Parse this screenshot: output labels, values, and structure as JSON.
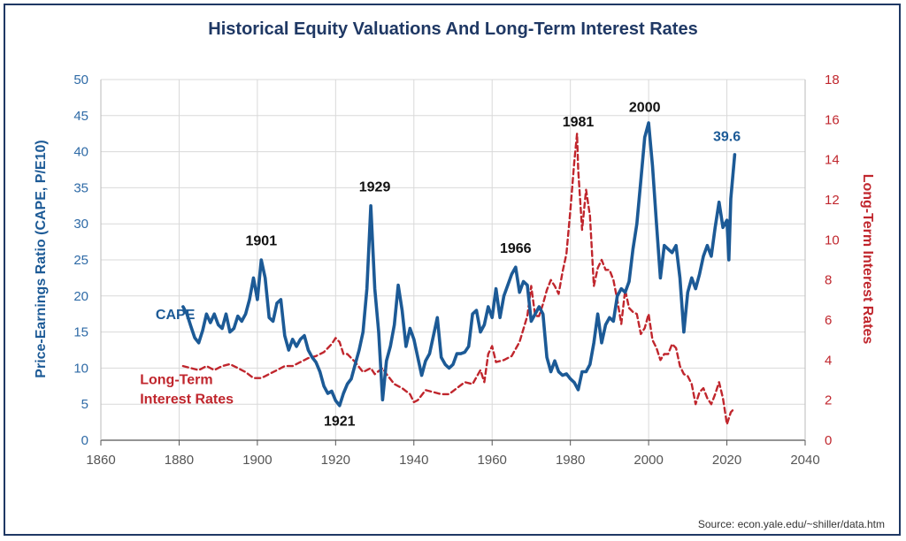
{
  "chart_data": {
    "type": "line",
    "title": "Historical Equity Valuations And Long-Term Interest Rates",
    "source": "Source: econ.yale.edu/~shiller/data.htm",
    "xlim": [
      1860,
      2040
    ],
    "x_ticks": [
      1860,
      1880,
      1900,
      1920,
      1940,
      1960,
      1980,
      2000,
      2020,
      2040
    ],
    "y_left": {
      "label": "Price-Earnings Ratio (CAPE, P/E10)",
      "range": [
        0,
        50
      ],
      "ticks": [
        0,
        5,
        10,
        15,
        20,
        25,
        30,
        35,
        40,
        45,
        50
      ]
    },
    "y_right": {
      "label": "Long-Term Interest Rates",
      "range": [
        0,
        18
      ],
      "ticks": [
        0,
        2,
        4,
        6,
        8,
        10,
        12,
        14,
        16,
        18
      ]
    },
    "grid": true,
    "colors": {
      "cape": "#1c5a96",
      "rates": "#c0262d",
      "title": "#1f3864"
    },
    "series": [
      {
        "name": "CAPE",
        "axis": "left",
        "style": "solid",
        "points": [
          [
            1881,
            18.5
          ],
          [
            1882,
            17.5
          ],
          [
            1883,
            15.8
          ],
          [
            1884,
            14.2
          ],
          [
            1885,
            13.5
          ],
          [
            1886,
            15.2
          ],
          [
            1887,
            17.5
          ],
          [
            1888,
            16.3
          ],
          [
            1889,
            17.5
          ],
          [
            1890,
            16.0
          ],
          [
            1891,
            15.5
          ],
          [
            1892,
            17.5
          ],
          [
            1893,
            15.0
          ],
          [
            1894,
            15.5
          ],
          [
            1895,
            17.2
          ],
          [
            1896,
            16.5
          ],
          [
            1897,
            17.5
          ],
          [
            1898,
            19.5
          ],
          [
            1899,
            22.5
          ],
          [
            1900,
            19.5
          ],
          [
            1901,
            25.0
          ],
          [
            1902,
            22.5
          ],
          [
            1903,
            17.0
          ],
          [
            1904,
            16.5
          ],
          [
            1905,
            19.0
          ],
          [
            1906,
            19.5
          ],
          [
            1907,
            14.5
          ],
          [
            1908,
            12.5
          ],
          [
            1909,
            14.0
          ],
          [
            1910,
            13.0
          ],
          [
            1911,
            14.0
          ],
          [
            1912,
            14.5
          ],
          [
            1913,
            12.5
          ],
          [
            1914,
            11.5
          ],
          [
            1915,
            10.8
          ],
          [
            1916,
            9.5
          ],
          [
            1917,
            7.5
          ],
          [
            1918,
            6.5
          ],
          [
            1919,
            6.8
          ],
          [
            1920,
            5.5
          ],
          [
            1921,
            4.8
          ],
          [
            1922,
            6.5
          ],
          [
            1923,
            7.8
          ],
          [
            1924,
            8.5
          ],
          [
            1925,
            10.5
          ],
          [
            1926,
            12.5
          ],
          [
            1927,
            15.0
          ],
          [
            1928,
            21.0
          ],
          [
            1929,
            32.5
          ],
          [
            1930,
            21.0
          ],
          [
            1931,
            15.0
          ],
          [
            1932,
            5.6
          ],
          [
            1933,
            11.0
          ],
          [
            1934,
            13.0
          ],
          [
            1935,
            16.0
          ],
          [
            1936,
            21.5
          ],
          [
            1937,
            18.0
          ],
          [
            1938,
            13.0
          ],
          [
            1939,
            15.5
          ],
          [
            1940,
            14.0
          ],
          [
            1941,
            11.5
          ],
          [
            1942,
            9.0
          ],
          [
            1943,
            11.0
          ],
          [
            1944,
            12.0
          ],
          [
            1945,
            14.5
          ],
          [
            1946,
            17.0
          ],
          [
            1947,
            11.5
          ],
          [
            1948,
            10.5
          ],
          [
            1949,
            10.0
          ],
          [
            1950,
            10.5
          ],
          [
            1951,
            12.0
          ],
          [
            1952,
            12.0
          ],
          [
            1953,
            12.2
          ],
          [
            1954,
            13.0
          ],
          [
            1955,
            17.5
          ],
          [
            1956,
            18.0
          ],
          [
            1957,
            15.0
          ],
          [
            1958,
            16.0
          ],
          [
            1959,
            18.5
          ],
          [
            1960,
            17.0
          ],
          [
            1961,
            21.0
          ],
          [
            1962,
            17.0
          ],
          [
            1963,
            20.0
          ],
          [
            1964,
            21.5
          ],
          [
            1965,
            23.0
          ],
          [
            1966,
            24.0
          ],
          [
            1967,
            20.5
          ],
          [
            1968,
            22.0
          ],
          [
            1969,
            21.5
          ],
          [
            1970,
            16.5
          ],
          [
            1971,
            17.5
          ],
          [
            1972,
            18.5
          ],
          [
            1973,
            17.5
          ],
          [
            1974,
            11.5
          ],
          [
            1975,
            9.5
          ],
          [
            1976,
            11.0
          ],
          [
            1977,
            9.5
          ],
          [
            1978,
            9.0
          ],
          [
            1979,
            9.2
          ],
          [
            1980,
            8.5
          ],
          [
            1981,
            8.0
          ],
          [
            1982,
            7.0
          ],
          [
            1983,
            9.5
          ],
          [
            1984,
            9.5
          ],
          [
            1985,
            10.5
          ],
          [
            1986,
            13.5
          ],
          [
            1987,
            17.5
          ],
          [
            1988,
            13.5
          ],
          [
            1989,
            16.0
          ],
          [
            1990,
            17.0
          ],
          [
            1991,
            16.5
          ],
          [
            1992,
            20.0
          ],
          [
            1993,
            21.0
          ],
          [
            1994,
            20.5
          ],
          [
            1995,
            22.0
          ],
          [
            1996,
            26.5
          ],
          [
            1997,
            30.0
          ],
          [
            1998,
            36.0
          ],
          [
            1999,
            42.0
          ],
          [
            2000,
            44.0
          ],
          [
            2001,
            38.0
          ],
          [
            2002,
            30.0
          ],
          [
            2003,
            22.5
          ],
          [
            2004,
            27.0
          ],
          [
            2005,
            26.5
          ],
          [
            2006,
            26.0
          ],
          [
            2007,
            27.0
          ],
          [
            2008,
            22.5
          ],
          [
            2009,
            15.0
          ],
          [
            2010,
            20.5
          ],
          [
            2011,
            22.5
          ],
          [
            2012,
            21.0
          ],
          [
            2013,
            23.0
          ],
          [
            2014,
            25.5
          ],
          [
            2015,
            27.0
          ],
          [
            2016,
            25.5
          ],
          [
            2017,
            29.5
          ],
          [
            2018,
            33.0
          ],
          [
            2019,
            29.5
          ],
          [
            2020,
            30.5
          ],
          [
            2020.5,
            25.0
          ],
          [
            2021,
            33.5
          ],
          [
            2022,
            39.6
          ]
        ]
      },
      {
        "name": "Long-Term Interest Rates",
        "axis": "right",
        "style": "dashed",
        "points": [
          [
            1881,
            3.7
          ],
          [
            1883,
            3.6
          ],
          [
            1885,
            3.5
          ],
          [
            1887,
            3.7
          ],
          [
            1889,
            3.5
          ],
          [
            1891,
            3.7
          ],
          [
            1893,
            3.8
          ],
          [
            1895,
            3.6
          ],
          [
            1897,
            3.4
          ],
          [
            1899,
            3.1
          ],
          [
            1901,
            3.1
          ],
          [
            1903,
            3.3
          ],
          [
            1905,
            3.5
          ],
          [
            1907,
            3.7
          ],
          [
            1909,
            3.7
          ],
          [
            1911,
            3.9
          ],
          [
            1913,
            4.1
          ],
          [
            1915,
            4.2
          ],
          [
            1917,
            4.4
          ],
          [
            1919,
            4.8
          ],
          [
            1920,
            5.1
          ],
          [
            1921,
            4.9
          ],
          [
            1922,
            4.3
          ],
          [
            1923,
            4.3
          ],
          [
            1925,
            3.9
          ],
          [
            1927,
            3.4
          ],
          [
            1929,
            3.6
          ],
          [
            1930,
            3.3
          ],
          [
            1932,
            3.6
          ],
          [
            1933,
            3.3
          ],
          [
            1935,
            2.8
          ],
          [
            1937,
            2.6
          ],
          [
            1939,
            2.3
          ],
          [
            1940,
            1.9
          ],
          [
            1941,
            2.0
          ],
          [
            1943,
            2.5
          ],
          [
            1945,
            2.4
          ],
          [
            1947,
            2.3
          ],
          [
            1949,
            2.3
          ],
          [
            1951,
            2.6
          ],
          [
            1953,
            2.9
          ],
          [
            1955,
            2.8
          ],
          [
            1957,
            3.5
          ],
          [
            1958,
            2.9
          ],
          [
            1959,
            4.3
          ],
          [
            1960,
            4.7
          ],
          [
            1961,
            3.9
          ],
          [
            1963,
            4.0
          ],
          [
            1965,
            4.2
          ],
          [
            1967,
            4.9
          ],
          [
            1969,
            6.2
          ],
          [
            1970,
            7.7
          ],
          [
            1971,
            6.2
          ],
          [
            1972,
            6.2
          ],
          [
            1973,
            6.8
          ],
          [
            1974,
            7.5
          ],
          [
            1975,
            8.0
          ],
          [
            1976,
            7.7
          ],
          [
            1977,
            7.3
          ],
          [
            1978,
            8.4
          ],
          [
            1979,
            9.3
          ],
          [
            1980,
            11.5
          ],
          [
            1981,
            13.9
          ],
          [
            1981.7,
            15.3
          ],
          [
            1982,
            13.5
          ],
          [
            1983,
            10.5
          ],
          [
            1984,
            12.5
          ],
          [
            1985,
            11.2
          ],
          [
            1986,
            7.7
          ],
          [
            1987,
            8.6
          ],
          [
            1988,
            9.0
          ],
          [
            1989,
            8.5
          ],
          [
            1990,
            8.5
          ],
          [
            1991,
            8.0
          ],
          [
            1992,
            7.0
          ],
          [
            1993,
            5.8
          ],
          [
            1994,
            7.5
          ],
          [
            1995,
            6.6
          ],
          [
            1996,
            6.4
          ],
          [
            1997,
            6.3
          ],
          [
            1998,
            5.3
          ],
          [
            1999,
            5.6
          ],
          [
            2000,
            6.3
          ],
          [
            2001,
            5.0
          ],
          [
            2002,
            4.6
          ],
          [
            2003,
            4.0
          ],
          [
            2004,
            4.3
          ],
          [
            2005,
            4.3
          ],
          [
            2006,
            4.8
          ],
          [
            2007,
            4.6
          ],
          [
            2008,
            3.7
          ],
          [
            2009,
            3.3
          ],
          [
            2010,
            3.2
          ],
          [
            2011,
            2.8
          ],
          [
            2012,
            1.8
          ],
          [
            2013,
            2.4
          ],
          [
            2014,
            2.6
          ],
          [
            2015,
            2.1
          ],
          [
            2016,
            1.8
          ],
          [
            2017,
            2.3
          ],
          [
            2018,
            2.9
          ],
          [
            2019,
            2.1
          ],
          [
            2020,
            0.8
          ],
          [
            2021,
            1.4
          ],
          [
            2022,
            1.6
          ]
        ]
      }
    ],
    "annotations": [
      {
        "text": "1901",
        "x": 1901,
        "y": 27.0,
        "axis": "left",
        "color": "black"
      },
      {
        "text": "1929",
        "x": 1930,
        "y": 34.5,
        "axis": "left",
        "color": "black"
      },
      {
        "text": "1921",
        "x": 1921,
        "y": 2.0,
        "axis": "left",
        "color": "black"
      },
      {
        "text": "1966",
        "x": 1966,
        "y": 26.0,
        "axis": "left",
        "color": "black"
      },
      {
        "text": "1981",
        "x": 1982,
        "y": 43.5,
        "axis": "left",
        "color": "black"
      },
      {
        "text": "2000",
        "x": 1999,
        "y": 45.5,
        "axis": "left",
        "color": "black"
      },
      {
        "text": "39.6",
        "x": 2020,
        "y": 41.5,
        "axis": "left",
        "color": "blue"
      }
    ],
    "series_labels": [
      {
        "text": "CAPE",
        "x": 1874,
        "y": 16.8,
        "color": "blue"
      },
      {
        "text": "Long-Term",
        "x": 1870,
        "y": 7.8,
        "color": "red"
      },
      {
        "text": "Interest Rates",
        "x": 1870,
        "y": 5.1,
        "color": "red"
      }
    ]
  }
}
